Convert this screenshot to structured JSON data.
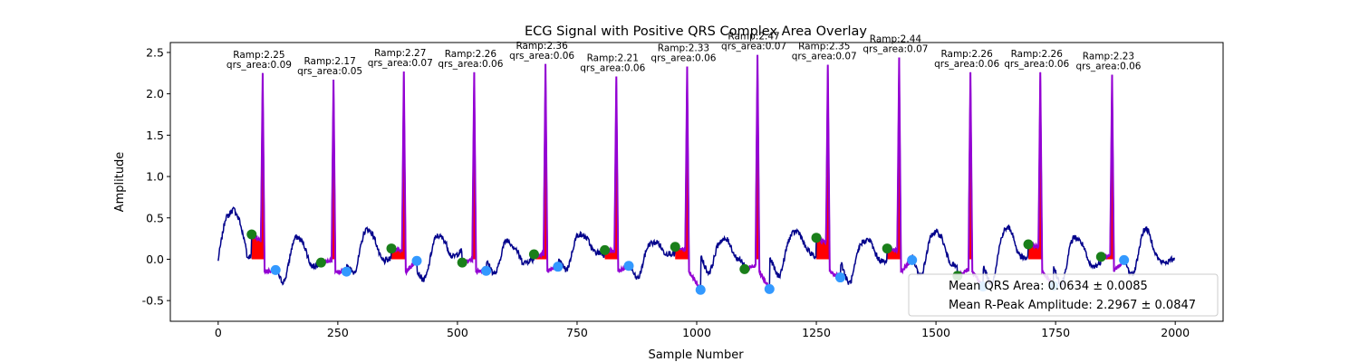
{
  "chart_data": {
    "type": "line",
    "title": "ECG Signal with Positive QRS Complex Area Overlay",
    "xlabel": "Sample Number",
    "ylabel": "Amplitude",
    "xlim": [
      -100,
      2100
    ],
    "ylim": [
      -0.75,
      2.62
    ],
    "x_ticks": [
      0,
      250,
      500,
      750,
      1000,
      1250,
      1500,
      1750,
      2000
    ],
    "y_ticks": [
      -0.5,
      0.0,
      0.5,
      1.0,
      1.5,
      2.0,
      2.5
    ],
    "grid": false,
    "legend_position": "lower-right",
    "colors": {
      "signal": "#00008b",
      "qrs_segment": "#9400d3",
      "qrs_area_fill": "#ff0000",
      "q_onset_marker": "#1a7f1a",
      "s_offset_marker": "#3399ff"
    },
    "beats": [
      {
        "onset": 70,
        "onset_amp": 0.3,
        "r": 93,
        "r_amp": 2.25,
        "offset": 120,
        "offset_amp": -0.13,
        "ramp_label": "Ramp:2.25",
        "area_label": "qrs_area:0.09"
      },
      {
        "onset": 215,
        "onset_amp": -0.04,
        "r": 241,
        "r_amp": 2.17,
        "offset": 268,
        "offset_amp": -0.15,
        "ramp_label": "Ramp:2.17",
        "area_label": "qrs_area:0.05"
      },
      {
        "onset": 362,
        "onset_amp": 0.13,
        "r": 388,
        "r_amp": 2.27,
        "offset": 415,
        "offset_amp": -0.02,
        "ramp_label": "Ramp:2.27",
        "area_label": "qrs_area:0.07"
      },
      {
        "onset": 510,
        "onset_amp": -0.04,
        "r": 535,
        "r_amp": 2.26,
        "offset": 560,
        "offset_amp": -0.14,
        "ramp_label": "Ramp:2.26",
        "area_label": "qrs_area:0.06"
      },
      {
        "onset": 660,
        "onset_amp": 0.06,
        "r": 684,
        "r_amp": 2.36,
        "offset": 710,
        "offset_amp": -0.09,
        "ramp_label": "Ramp:2.36",
        "area_label": "qrs_area:0.06"
      },
      {
        "onset": 808,
        "onset_amp": 0.11,
        "r": 832,
        "r_amp": 2.21,
        "offset": 858,
        "offset_amp": -0.08,
        "ramp_label": "Ramp:2.21",
        "area_label": "qrs_area:0.06"
      },
      {
        "onset": 955,
        "onset_amp": 0.15,
        "r": 980,
        "r_amp": 2.33,
        "offset": 1008,
        "offset_amp": -0.37,
        "ramp_label": "Ramp:2.33",
        "area_label": "qrs_area:0.06"
      },
      {
        "onset": 1100,
        "onset_amp": -0.12,
        "r": 1127,
        "r_amp": 2.47,
        "offset": 1152,
        "offset_amp": -0.36,
        "ramp_label": "Ramp:2.47",
        "area_label": "qrs_area:0.07"
      },
      {
        "onset": 1250,
        "onset_amp": 0.26,
        "r": 1274,
        "r_amp": 2.35,
        "offset": 1300,
        "offset_amp": -0.22,
        "ramp_label": "Ramp:2.35",
        "area_label": "qrs_area:0.07"
      },
      {
        "onset": 1398,
        "onset_amp": 0.13,
        "r": 1423,
        "r_amp": 2.44,
        "offset": 1450,
        "offset_amp": -0.01,
        "ramp_label": "Ramp:2.44",
        "area_label": "qrs_area:0.07"
      },
      {
        "onset": 1545,
        "onset_amp": -0.2,
        "r": 1572,
        "r_amp": 2.26,
        "offset": 1598,
        "offset_amp": -0.33,
        "ramp_label": "Ramp:2.26",
        "area_label": "qrs_area:0.06"
      },
      {
        "onset": 1693,
        "onset_amp": 0.18,
        "r": 1718,
        "r_amp": 2.26,
        "offset": 1745,
        "offset_amp": -0.32,
        "ramp_label": "Ramp:2.26",
        "area_label": "qrs_area:0.06"
      },
      {
        "onset": 1845,
        "onset_amp": 0.03,
        "r": 1868,
        "r_amp": 2.23,
        "offset": 1893,
        "offset_amp": -0.01,
        "ramp_label": "Ramp:2.23",
        "area_label": "qrs_area:0.06"
      }
    ],
    "legend": [
      {
        "label": "Mean QRS Area: 0.0634 ± 0.0085"
      },
      {
        "label": "Mean R-Peak Amplitude: 2.2967 ± 0.0847"
      }
    ]
  }
}
